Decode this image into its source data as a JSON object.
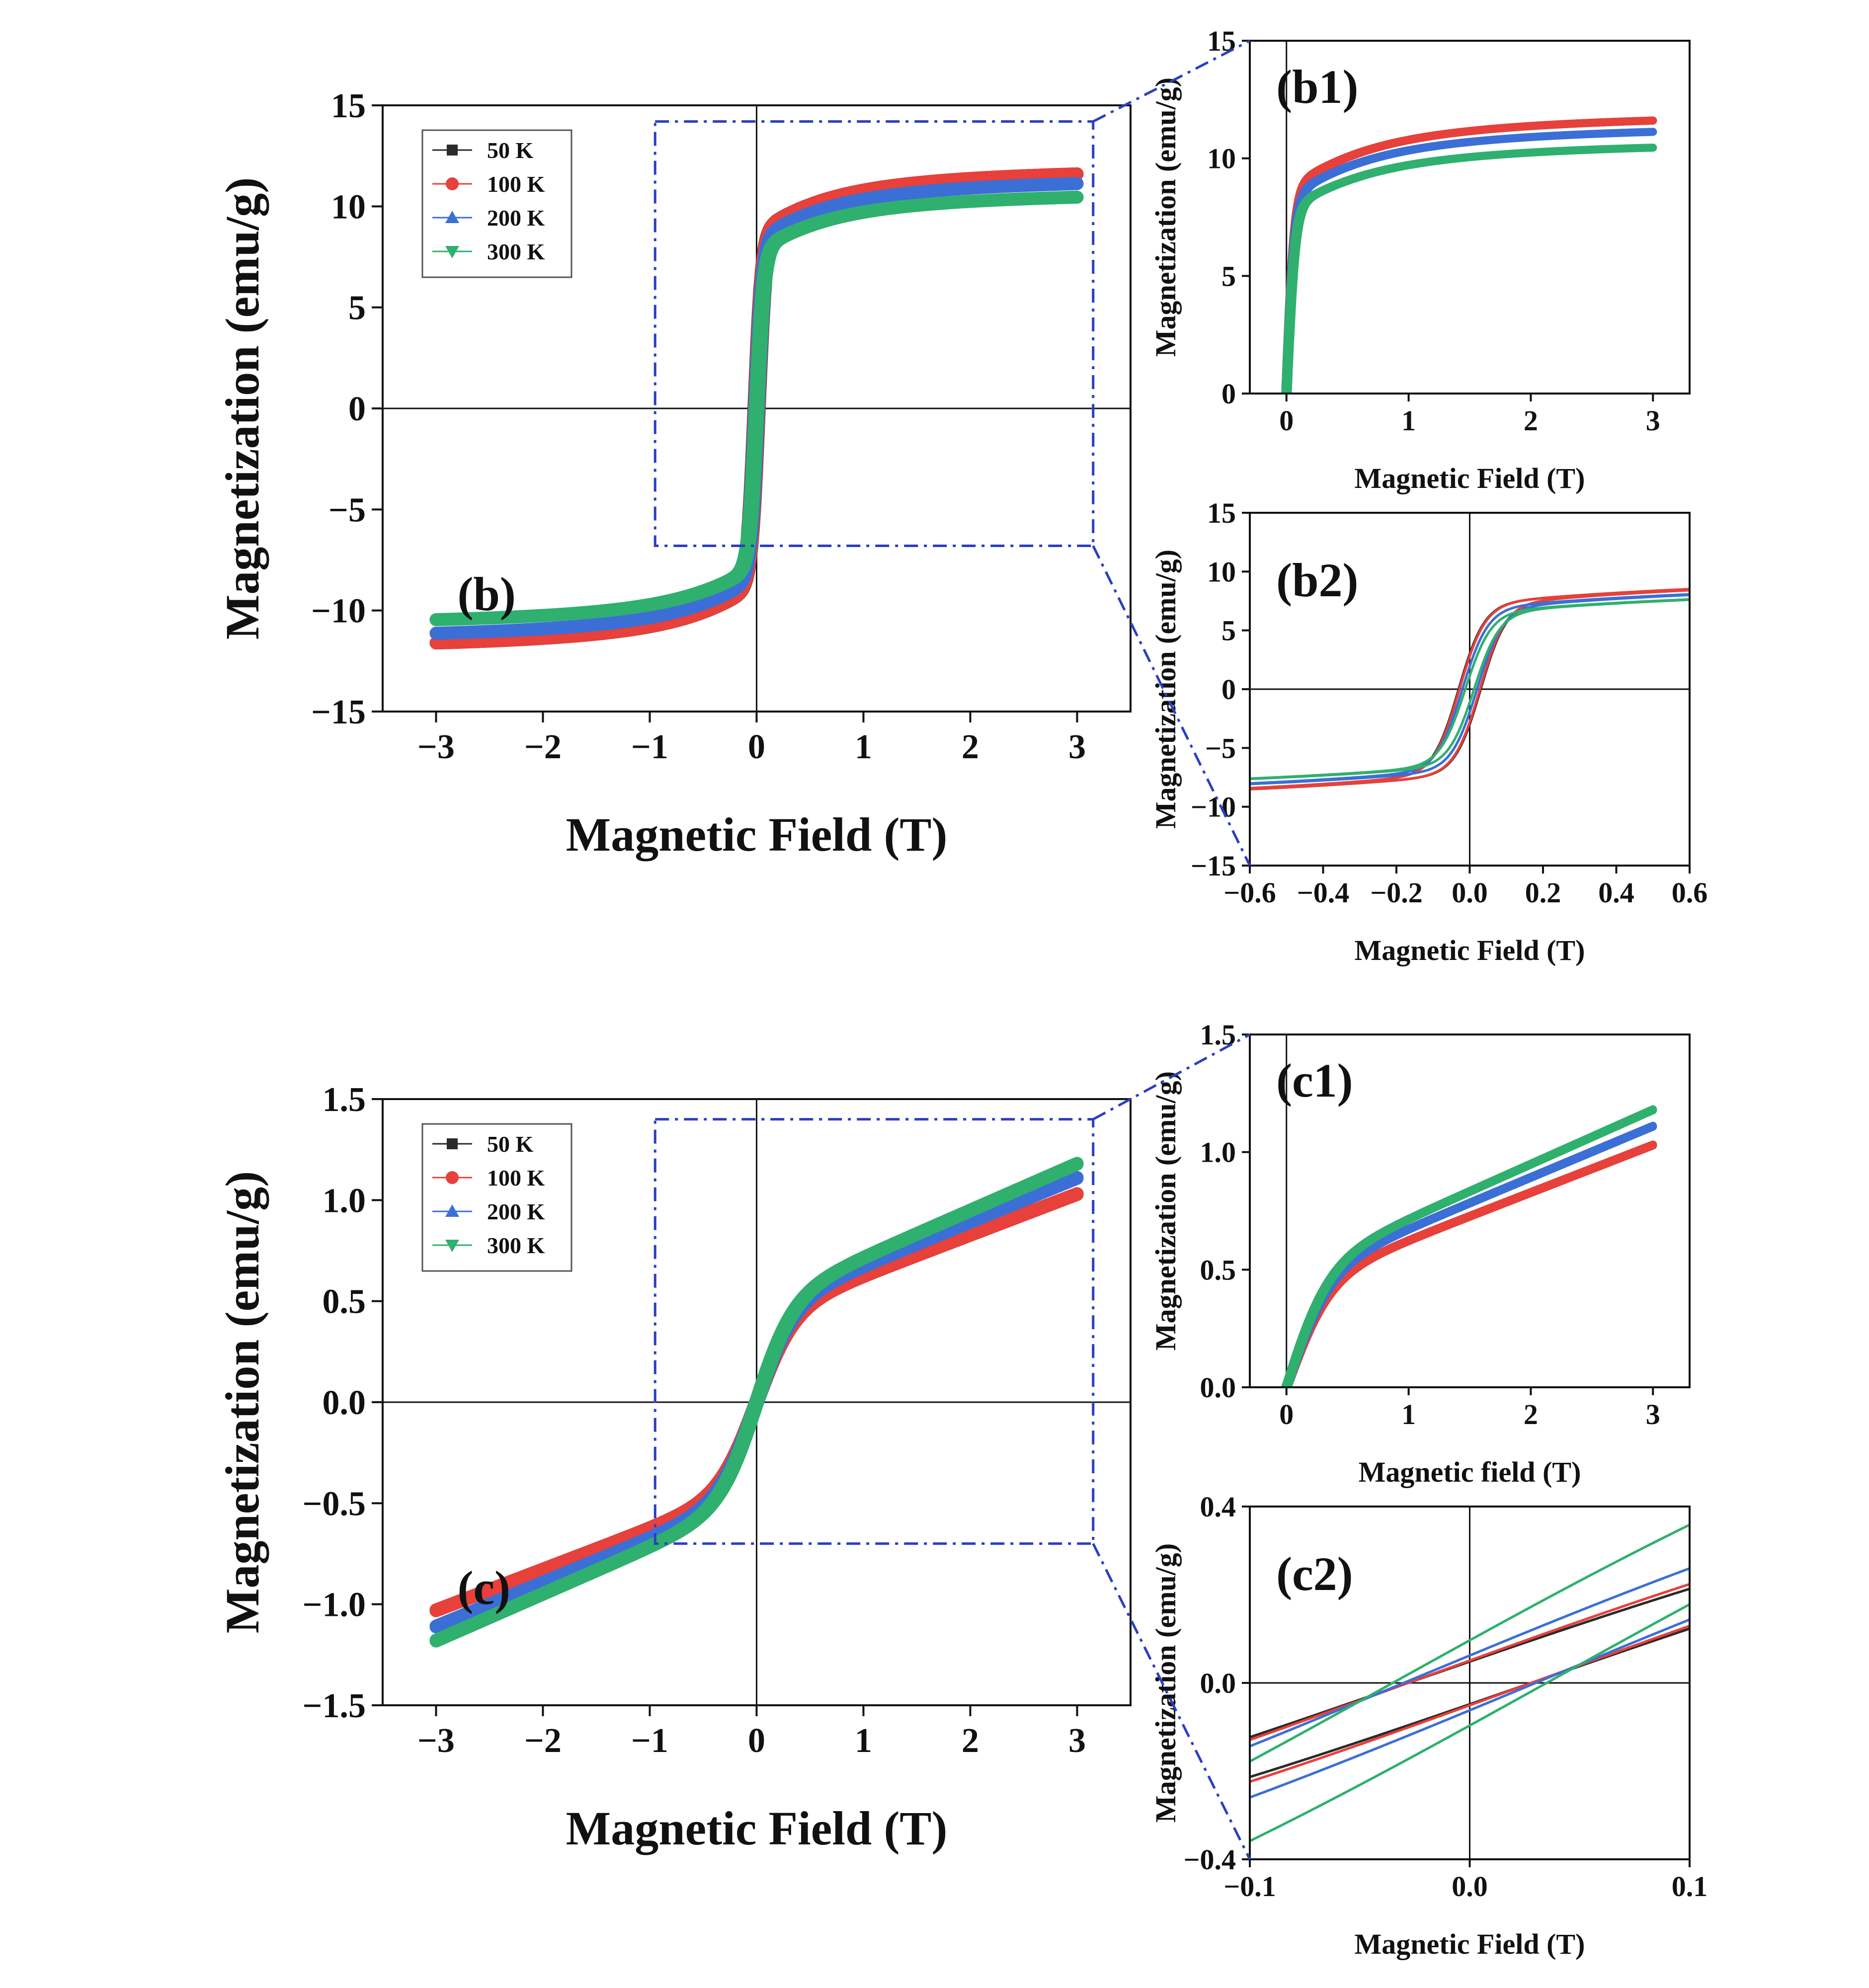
{
  "colors": {
    "50 K": "#2b2b2b",
    "100 K": "#e8403a",
    "200 K": "#3b6fd6",
    "300 K": "#2fb06e",
    "zoom_box": "#2a3fc0",
    "axis": "#111111"
  },
  "legend": {
    "entries": [
      {
        "label": "50 K",
        "marker": "square"
      },
      {
        "label": "100 K",
        "marker": "circle"
      },
      {
        "label": "200 K",
        "marker": "triangle-up"
      },
      {
        "label": "300 K",
        "marker": "triangle-down"
      }
    ]
  },
  "chart_data": [
    {
      "id": "b",
      "type": "line",
      "panel_label": "(b)",
      "xlabel": "Magnetic Field (T)",
      "ylabel": "Magnetization (emu/g)",
      "xlim": [
        -3.5,
        3.5
      ],
      "ylim": [
        -15,
        15
      ],
      "xticks": [
        -3,
        -2,
        -1,
        0,
        1,
        2,
        3
      ],
      "yticks": [
        -15,
        -10,
        -5,
        0,
        5,
        10,
        15
      ],
      "zoom_box": {
        "x": [
          -0.95,
          3.15
        ],
        "y": [
          -6.8,
          14.2
        ]
      },
      "series": [
        {
          "name": "50 K",
          "Ms": 12.1,
          "Hc": 0.025
        },
        {
          "name": "100 K",
          "Ms": 12.1,
          "Hc": 0.022
        },
        {
          "name": "200 K",
          "Ms": 11.6,
          "Hc": 0.018
        },
        {
          "name": "300 K",
          "Ms": 10.9,
          "Hc": 0.012
        }
      ]
    },
    {
      "id": "b1",
      "type": "line",
      "panel_label": "(b1)",
      "xlabel": "Magnetic Field (T)",
      "ylabel": "Magnetization (emu/g)",
      "xlim": [
        -0.3,
        3.3
      ],
      "ylim": [
        0,
        15
      ],
      "xticks": [
        0,
        1,
        2,
        3
      ],
      "yticks": [
        0,
        5,
        10,
        15
      ],
      "series": [
        {
          "name": "50 K",
          "Ms": 12.1
        },
        {
          "name": "100 K",
          "Ms": 12.1
        },
        {
          "name": "200 K",
          "Ms": 11.6
        },
        {
          "name": "300 K",
          "Ms": 10.9
        }
      ]
    },
    {
      "id": "b2",
      "type": "line",
      "panel_label": "(b2)",
      "xlabel": "Magnetic Field (T)",
      "ylabel": "Magnetization (emu/g)",
      "xlim": [
        -0.6,
        0.6
      ],
      "ylim": [
        -15,
        15
      ],
      "xticks": [
        -0.6,
        -0.4,
        -0.2,
        0.0,
        0.2,
        0.4,
        0.6
      ],
      "yticks": [
        -15,
        -10,
        -5,
        0,
        5,
        10,
        15
      ],
      "series": [
        {
          "name": "50 K",
          "Ms": 10.0,
          "Hc": 0.03
        },
        {
          "name": "100 K",
          "Ms": 10.0,
          "Hc": 0.028
        },
        {
          "name": "200 K",
          "Ms": 9.5,
          "Hc": 0.02
        },
        {
          "name": "300 K",
          "Ms": 9.0,
          "Hc": 0.012
        }
      ]
    },
    {
      "id": "c",
      "type": "line",
      "panel_label": "(c)",
      "xlabel": "Magnetic Field (T)",
      "ylabel": "Magnetization (emu/g)",
      "xlim": [
        -3.5,
        3.5
      ],
      "ylim": [
        -1.5,
        1.5
      ],
      "xticks": [
        -3,
        -2,
        -1,
        0,
        1,
        2,
        3
      ],
      "yticks": [
        -1.5,
        -1.0,
        -0.5,
        0.0,
        0.5,
        1.0,
        1.5
      ],
      "zoom_box": {
        "x": [
          -0.95,
          3.15
        ],
        "y": [
          -0.7,
          1.4
        ]
      },
      "series": [
        {
          "name": "50 K",
          "M_at_3T": 1.03
        },
        {
          "name": "100 K",
          "M_at_3T": 1.03
        },
        {
          "name": "200 K",
          "M_at_3T": 1.11
        },
        {
          "name": "300 K",
          "M_at_3T": 1.18
        }
      ]
    },
    {
      "id": "c1",
      "type": "line",
      "panel_label": "(c1)",
      "xlabel": "Magnetic field (T)",
      "ylabel": "Magnetization (emu/g)",
      "xlim": [
        -0.3,
        3.3
      ],
      "ylim": [
        0,
        1.5
      ],
      "xticks": [
        0,
        1,
        2,
        3
      ],
      "yticks": [
        0.0,
        0.5,
        1.0,
        1.5
      ],
      "series": [
        {
          "name": "50 K",
          "M_at_3T": 1.03
        },
        {
          "name": "100 K",
          "M_at_3T": 1.03
        },
        {
          "name": "200 K",
          "M_at_3T": 1.11
        },
        {
          "name": "300 K",
          "M_at_3T": 1.18
        }
      ]
    },
    {
      "id": "c2",
      "type": "line",
      "panel_label": "(c2)",
      "xlabel": "Magnetic Field (T)",
      "ylabel": "Magnetization (emu/g)",
      "xlim": [
        -0.1,
        0.1
      ],
      "ylim": [
        -0.4,
        0.4
      ],
      "xticks": [
        -0.1,
        0.0,
        0.1
      ],
      "yticks": [
        -0.4,
        0.0,
        0.4
      ],
      "series": [
        {
          "name": "50 K",
          "Hc": 0.028,
          "M_at_0_1T": 0.2
        },
        {
          "name": "100 K",
          "Hc": 0.028,
          "M_at_0_1T": 0.21
        },
        {
          "name": "200 K",
          "Hc": 0.03,
          "M_at_0_1T": 0.24
        },
        {
          "name": "300 K",
          "Hc": 0.035,
          "M_at_0_1T": 0.32
        }
      ]
    }
  ]
}
